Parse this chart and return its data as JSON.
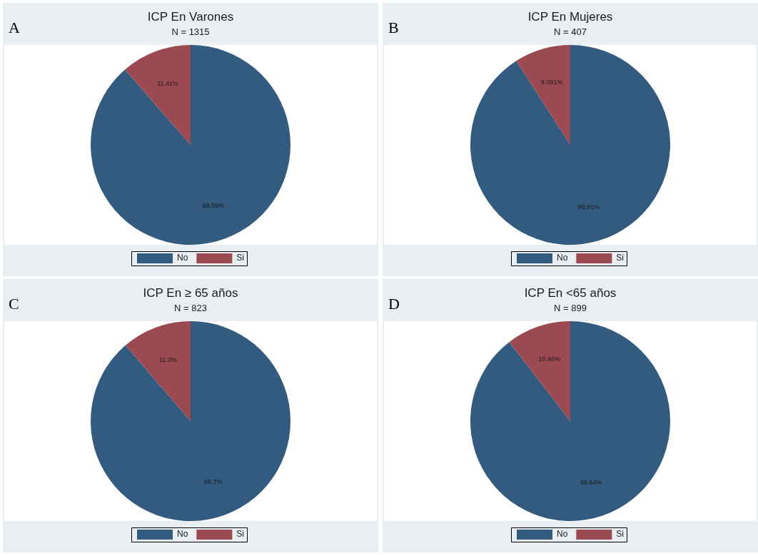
{
  "chart_data": [
    {
      "type": "pie",
      "title": "ICP En Varones",
      "subtitle": "N = 1315",
      "annotations": [
        "A"
      ],
      "categories": [
        "No",
        "Si"
      ],
      "values": [
        88.59,
        11.41
      ],
      "colors": [
        "#335a7f",
        "#9c4a52"
      ],
      "value_labels": [
        "88.59%",
        "11.41%"
      ],
      "legend": "bottom"
    },
    {
      "type": "pie",
      "title": "ICP En Mujeres",
      "subtitle": "N = 407",
      "annotations": [
        "B"
      ],
      "categories": [
        "No",
        "Si"
      ],
      "values": [
        90.91,
        9.091
      ],
      "colors": [
        "#335a7f",
        "#9c4a52"
      ],
      "value_labels": [
        "90.91%",
        "9.091%"
      ],
      "legend": "bottom"
    },
    {
      "type": "pie",
      "title": "ICP En ≥ 65 años",
      "subtitle": "N = 823",
      "annotations": [
        "C"
      ],
      "categories": [
        "No",
        "Si"
      ],
      "values": [
        88.7,
        11.3
      ],
      "colors": [
        "#335a7f",
        "#9c4a52"
      ],
      "value_labels": [
        "88.7%",
        "11.3%"
      ],
      "legend": "bottom"
    },
    {
      "type": "pie",
      "title": "ICP En <65 años",
      "subtitle": "N = 899",
      "annotations": [
        "D"
      ],
      "categories": [
        "No",
        "Si"
      ],
      "values": [
        89.54,
        10.46
      ],
      "colors": [
        "#335a7f",
        "#9c4a52"
      ],
      "value_labels": [
        "89.54%",
        "10.46%"
      ],
      "legend": "bottom"
    }
  ]
}
